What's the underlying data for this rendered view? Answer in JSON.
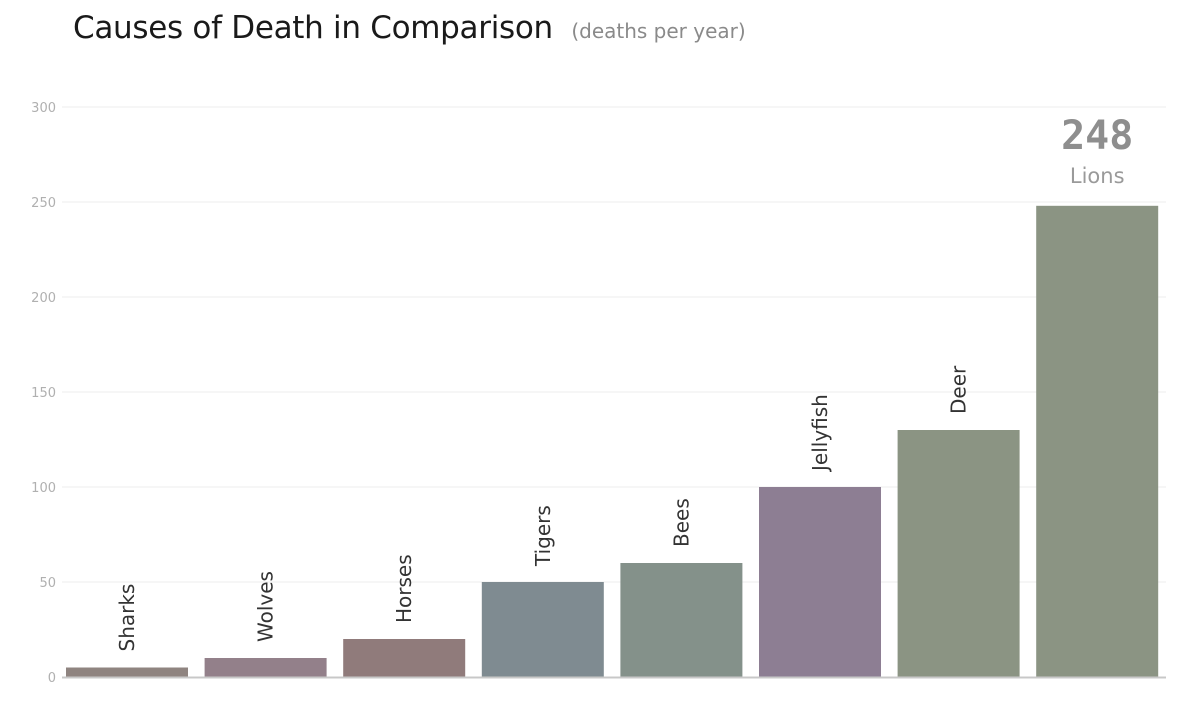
{
  "chart_data": {
    "type": "bar",
    "title": "Causes of Death in Comparison",
    "subtitle": "(deaths per year)",
    "xlabel": "",
    "ylabel": "",
    "ylim": [
      0,
      300
    ],
    "yticks": [
      0,
      50,
      100,
      150,
      200,
      250,
      300
    ],
    "grid": true,
    "categories": [
      "Sharks",
      "Wolves",
      "Horses",
      "Tigers",
      "Bees",
      "Jellyfish",
      "Deer",
      "Lions"
    ],
    "values": [
      5,
      10,
      20,
      50,
      60,
      100,
      130,
      248
    ],
    "colors": [
      "#8f8480",
      "#93808a",
      "#907b7b",
      "#7f8b91",
      "#84918a",
      "#8d7e93",
      "#8b9483",
      "#8b9483"
    ],
    "highlight": {
      "category": "Lions",
      "value": "248",
      "label": "Lions"
    }
  }
}
